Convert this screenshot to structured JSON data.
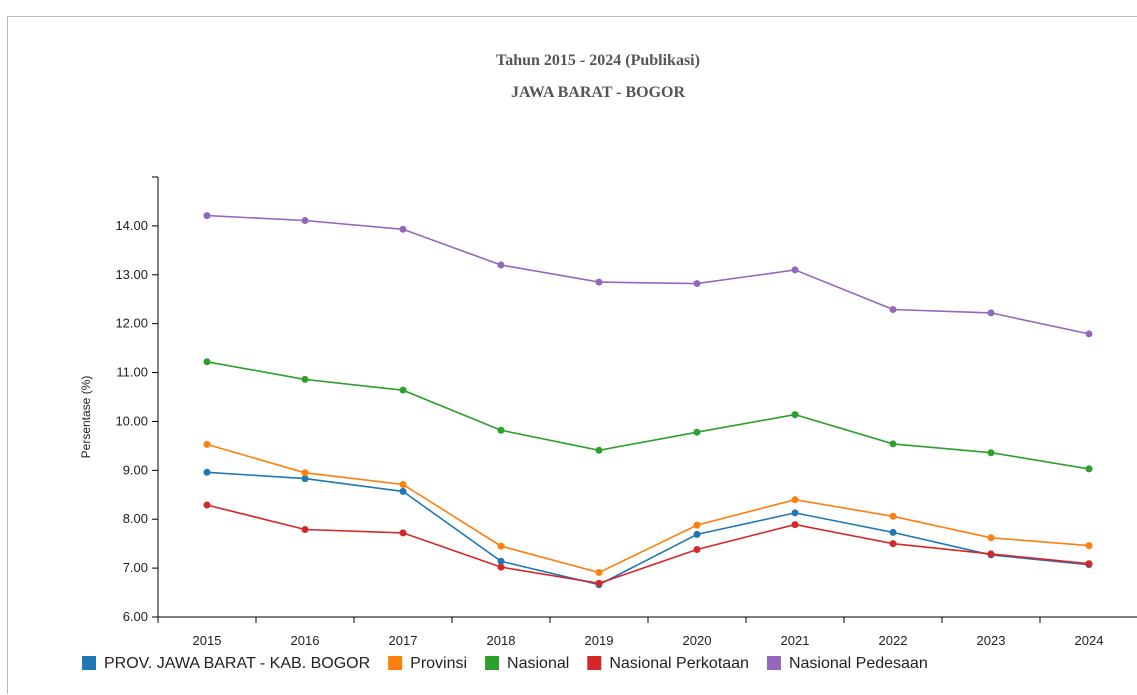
{
  "chart_data": {
    "type": "line",
    "title": "Tahun 2015 - 2024 (Publikasi)",
    "subtitle": "JAWA BARAT - BOGOR",
    "xlabel": "",
    "ylabel": "Persentase (%)",
    "ylim": [
      6.0,
      15.0
    ],
    "yticks": [
      "6.00",
      "7.00",
      "8.00",
      "9.00",
      "10.00",
      "11.00",
      "12.00",
      "13.00",
      "14.00"
    ],
    "categories": [
      "2015",
      "2016",
      "2017",
      "2018",
      "2019",
      "2020",
      "2021",
      "2022",
      "2023",
      "2024"
    ],
    "grid": false,
    "legend_position": "bottom",
    "series": [
      {
        "name": "PROV. JAWA BARAT - KAB. BOGOR",
        "color": "#1f77b4",
        "values": [
          8.96,
          8.83,
          8.57,
          7.14,
          6.66,
          7.69,
          8.13,
          7.73,
          7.27,
          7.07
        ]
      },
      {
        "name": "Provinsi",
        "color": "#ff7f0e",
        "values": [
          9.53,
          8.95,
          8.71,
          7.45,
          6.91,
          7.88,
          8.4,
          8.06,
          7.62,
          7.46
        ]
      },
      {
        "name": "Nasional",
        "color": "#2ca02c",
        "values": [
          11.22,
          10.86,
          10.64,
          9.82,
          9.41,
          9.78,
          10.14,
          9.54,
          9.36,
          9.03
        ]
      },
      {
        "name": "Nasional Perkotaan",
        "color": "#d62728",
        "values": [
          8.29,
          7.79,
          7.72,
          7.02,
          6.69,
          7.38,
          7.89,
          7.5,
          7.29,
          7.09
        ]
      },
      {
        "name": "Nasional Pedesaan",
        "color": "#9467bd",
        "values": [
          14.21,
          14.11,
          13.93,
          13.2,
          12.85,
          12.82,
          13.1,
          12.29,
          12.22,
          11.79
        ]
      }
    ]
  }
}
